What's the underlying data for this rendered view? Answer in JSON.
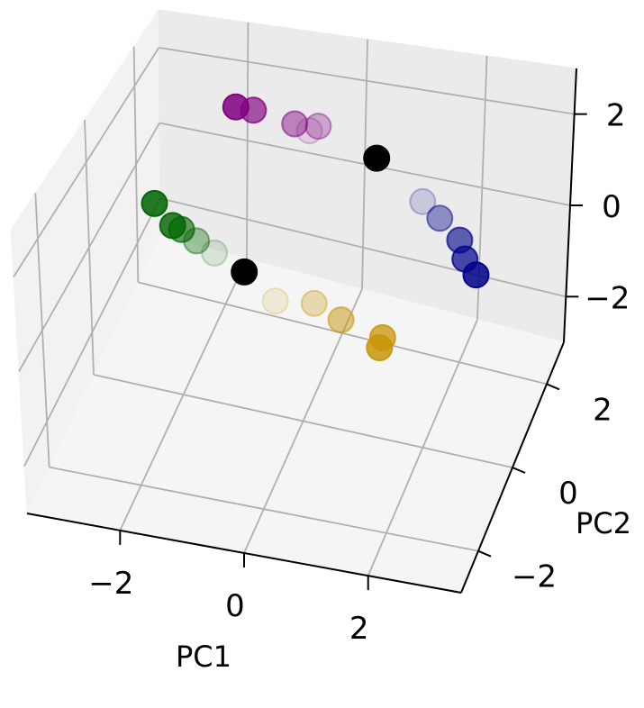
{
  "chart_data": {
    "type": "scatter",
    "projection": "3d",
    "title": "",
    "xlabel": "PC1",
    "ylabel": "PC2",
    "zlabel": "",
    "xlim": [
      -3.5,
      3.5
    ],
    "ylim": [
      -3,
      3
    ],
    "zlim": [
      -3,
      3
    ],
    "xticks": [
      -2,
      0,
      2
    ],
    "yticks": [
      -2,
      0,
      2
    ],
    "zticks": [
      -2,
      0,
      2
    ],
    "xtick_labels": [
      "−2",
      "0",
      "2"
    ],
    "ytick_labels": [
      "−2",
      "0",
      "2"
    ],
    "ztick_labels": [
      "−2",
      "0",
      "2"
    ],
    "grid": true,
    "legend": false,
    "series": [
      {
        "color": "#006400",
        "points": [
          {
            "x": -3.0,
            "y": 1.5,
            "z": -0.3,
            "alpha": 0.85
          },
          {
            "x": -2.7,
            "y": 1.5,
            "z": -0.75,
            "alpha": 0.8
          },
          {
            "x": -2.55,
            "y": 1.5,
            "z": -0.8,
            "alpha": 0.6
          },
          {
            "x": -2.3,
            "y": 1.5,
            "z": -1.0,
            "alpha": 0.35
          },
          {
            "x": -2.0,
            "y": 1.5,
            "z": -1.2,
            "alpha": 0.12
          }
        ]
      },
      {
        "color": "#800080",
        "points": [
          {
            "x": -2.2,
            "y": 3.0,
            "z": 0.8,
            "alpha": 0.85
          },
          {
            "x": -1.9,
            "y": 3.0,
            "z": 0.8,
            "alpha": 0.65
          },
          {
            "x": -1.2,
            "y": 3.0,
            "z": 0.65,
            "alpha": 0.45
          },
          {
            "x": -0.95,
            "y": 3.0,
            "z": 0.55,
            "alpha": 0.12
          },
          {
            "x": -0.8,
            "y": 3.0,
            "z": 0.7,
            "alpha": 0.3
          }
        ]
      },
      {
        "color": "#00008b",
        "points": [
          {
            "x": 1.0,
            "y": 3.0,
            "z": -0.6,
            "alpha": 0.15
          },
          {
            "x": 1.3,
            "y": 3.0,
            "z": -0.9,
            "alpha": 0.4
          },
          {
            "x": 1.65,
            "y": 3.0,
            "z": -1.3,
            "alpha": 0.6
          },
          {
            "x": 1.75,
            "y": 3.0,
            "z": -1.7,
            "alpha": 0.7
          },
          {
            "x": 1.95,
            "y": 3.0,
            "z": -2.0,
            "alpha": 0.85
          }
        ]
      },
      {
        "color": "#c8960a",
        "points": [
          {
            "x": -0.8,
            "y": 1.0,
            "z": -1.45,
            "alpha": 0.12
          },
          {
            "x": -0.15,
            "y": 1.0,
            "z": -1.3,
            "alpha": 0.3
          },
          {
            "x": 0.3,
            "y": 1.0,
            "z": -1.55,
            "alpha": 0.5
          },
          {
            "x": 1.0,
            "y": 1.0,
            "z": -1.75,
            "alpha": 0.75
          },
          {
            "x": 0.95,
            "y": 1.0,
            "z": -2.0,
            "alpha": 0.85
          }
        ]
      },
      {
        "color": "#000000",
        "points": [
          {
            "x": -1.5,
            "y": 1.5,
            "z": -1.5,
            "alpha": 1.0
          },
          {
            "x": 0.2,
            "y": 3.0,
            "z": 0.2,
            "alpha": 1.0
          }
        ]
      }
    ]
  }
}
